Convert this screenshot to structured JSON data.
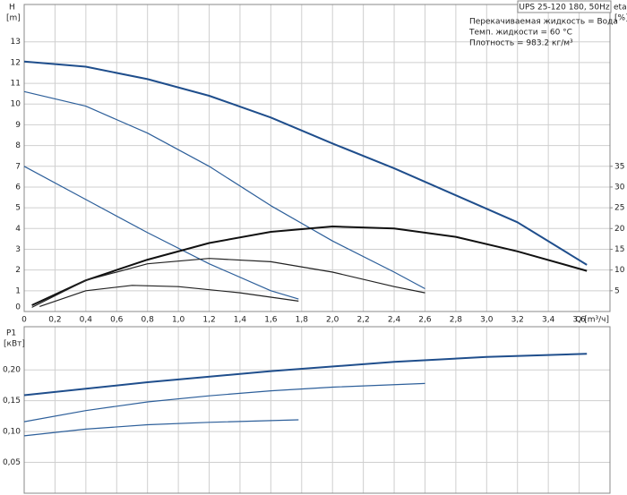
{
  "chart_data": [
    {
      "type": "line",
      "title": "UPS 25-120 180, 50Hz",
      "annotations": [
        "Перекачиваемая жидкость = Вода",
        "Темп. жидкости = 60 °C",
        "Плотность = 983.2 кг/м³"
      ],
      "xlabel": "Q [m³/ч]",
      "ylabel": "H",
      "yunit": "[m]",
      "y2label": "eta",
      "y2unit": "[%]",
      "xlim": [
        0,
        3.8
      ],
      "xticks": [
        0,
        {
          "value": 0.2,
          "label": "0,2"
        },
        {
          "value": 0.4,
          "label": "0,4"
        },
        {
          "value": 0.6,
          "label": "0,6"
        },
        {
          "value": 0.8,
          "label": "0,8"
        },
        {
          "value": 1,
          "label": "1,0"
        },
        {
          "value": 1.2,
          "label": "1,2"
        },
        {
          "value": 1.4,
          "label": "1,4"
        },
        {
          "value": 1.6,
          "label": "1,6"
        },
        {
          "value": 1.8,
          "label": "1,8"
        },
        {
          "value": 2,
          "label": "2,0"
        },
        {
          "value": 2.2,
          "label": "2,2"
        },
        {
          "value": 2.4,
          "label": "2,4"
        },
        {
          "value": 2.6,
          "label": "2,6"
        },
        {
          "value": 2.8,
          "label": "2,8"
        },
        {
          "value": 3,
          "label": "3,0"
        },
        {
          "value": 3.2,
          "label": "3,2"
        },
        {
          "value": 3.4,
          "label": "3,4"
        },
        {
          "value": 3.6,
          "label": "3,6"
        }
      ],
      "ylim": [
        0,
        14.8
      ],
      "yticks": [
        0,
        1,
        2,
        3,
        4,
        5,
        6,
        7,
        8,
        9,
        10,
        11,
        12,
        13
      ],
      "y2lim": [
        0,
        74
      ],
      "y2ticks": [
        5,
        10,
        15,
        20,
        25,
        30,
        35
      ],
      "grid": true,
      "series": [
        {
          "color": "#1f4e8c",
          "line_width": 2,
          "x": [
            0,
            0.4,
            0.8,
            1.2,
            1.6,
            2.0,
            2.4,
            2.8,
            3.2,
            3.65
          ],
          "values": [
            12.05,
            11.8,
            11.2,
            10.4,
            9.35,
            8.1,
            6.9,
            5.6,
            4.3,
            2.25
          ]
        },
        {
          "color": "#2d5f9a",
          "line_width": 1.2,
          "x": [
            0,
            0.4,
            0.8,
            1.2,
            1.6,
            2.0,
            2.4,
            2.6
          ],
          "values": [
            10.6,
            9.9,
            8.6,
            7.0,
            5.1,
            3.4,
            1.9,
            1.1
          ]
        },
        {
          "color": "#2d5f9a",
          "line_width": 1.2,
          "x": [
            0,
            0.4,
            0.8,
            1.2,
            1.6,
            1.78
          ],
          "values": [
            7.0,
            5.4,
            3.8,
            2.3,
            1.0,
            0.6
          ]
        },
        {
          "color": "#111111",
          "line_width": 2,
          "axis": "y2",
          "x": [
            0.05,
            0.4,
            0.8,
            1.2,
            1.6,
            2.0,
            2.4,
            2.8,
            3.2,
            3.65
          ],
          "values": [
            1.5,
            7.5,
            12.5,
            16.5,
            19.2,
            20.5,
            20,
            18,
            14.5,
            9.8
          ]
        },
        {
          "color": "#222222",
          "line_width": 1.2,
          "axis": "y2",
          "x": [
            0.05,
            0.4,
            0.8,
            1.2,
            1.6,
            2.0,
            2.4,
            2.6
          ],
          "values": [
            1,
            7.5,
            11.5,
            12.8,
            12,
            9.5,
            6,
            4.5
          ]
        },
        {
          "color": "#222222",
          "line_width": 1.2,
          "axis": "y2",
          "x": [
            0.1,
            0.4,
            0.7,
            1.0,
            1.4,
            1.78
          ],
          "values": [
            1.2,
            5,
            6.3,
            6,
            4.5,
            2.5
          ]
        }
      ]
    },
    {
      "type": "line",
      "ylabel": "P1",
      "yunit": "[кВт]",
      "xlim": [
        0,
        3.8
      ],
      "xticks": [
        0,
        0.2,
        0.4,
        0.6,
        0.8,
        1,
        1.2,
        1.4,
        1.6,
        1.8,
        2,
        2.2,
        2.4,
        2.6,
        2.8,
        3,
        3.2,
        3.4,
        3.6
      ],
      "show_xtick_labels": false,
      "ylim": [
        0,
        0.27
      ],
      "yticks": [
        {
          "value": 0.05,
          "label": "0,05"
        },
        {
          "value": 0.1,
          "label": "0,10"
        },
        {
          "value": 0.15,
          "label": "0,15"
        },
        {
          "value": 0.2,
          "label": "0,20"
        }
      ],
      "grid": true,
      "series": [
        {
          "color": "#1f4e8c",
          "line_width": 2,
          "x": [
            0,
            0.8,
            1.6,
            2.4,
            3.0,
            3.65
          ],
          "values": [
            0.159,
            0.18,
            0.198,
            0.213,
            0.221,
            0.226
          ]
        },
        {
          "color": "#2d5f9a",
          "line_width": 1.2,
          "x": [
            0,
            0.4,
            0.8,
            1.2,
            1.6,
            2.0,
            2.6
          ],
          "values": [
            0.116,
            0.134,
            0.148,
            0.158,
            0.166,
            0.172,
            0.178
          ]
        },
        {
          "color": "#2d5f9a",
          "line_width": 1.2,
          "x": [
            0,
            0.4,
            0.8,
            1.2,
            1.78
          ],
          "values": [
            0.093,
            0.104,
            0.111,
            0.115,
            0.119
          ]
        }
      ]
    }
  ]
}
